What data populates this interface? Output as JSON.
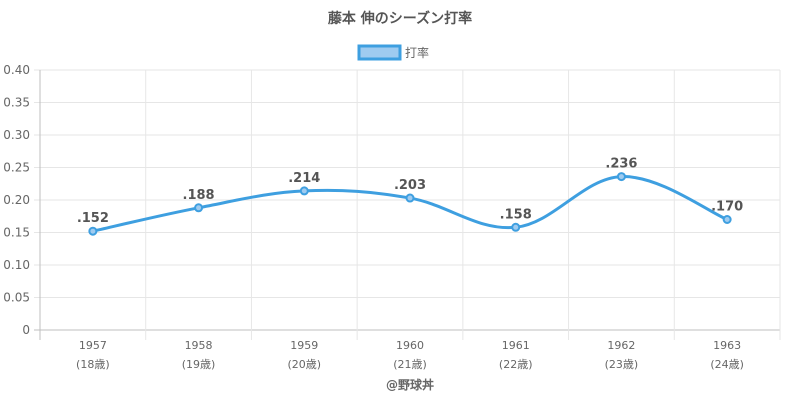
{
  "chart_data": {
    "type": "line",
    "title": "藤本 伸のシーズン打率",
    "x": [
      "1957",
      "1958",
      "1959",
      "1960",
      "1961",
      "1962",
      "1963"
    ],
    "x_sublabels": [
      "(18歳)",
      "(19歳)",
      "(20歳)",
      "(21歳)",
      "(22歳)",
      "(23歳)",
      "(24歳)"
    ],
    "series": [
      {
        "name": "打率",
        "values": [
          0.152,
          0.188,
          0.214,
          0.203,
          0.158,
          0.236,
          0.17
        ],
        "labels": [
          ".152",
          ".188",
          ".214",
          ".203",
          ".158",
          ".236",
          ".170"
        ]
      }
    ],
    "ylim": [
      0,
      0.4
    ],
    "yticks": [
      "0",
      "0.05",
      "0.10",
      "0.15",
      "0.20",
      "0.25",
      "0.30",
      "0.35",
      "0.40"
    ],
    "xlabel": "",
    "ylabel": "",
    "grid": true,
    "legend": "top-center",
    "footer": "@野球丼"
  },
  "colors": {
    "line": "#3e9fe0",
    "fill": "#9fcbf0",
    "grid": "#e6e6e6",
    "axis": "#bfbfbf",
    "text": "#666666",
    "title": "#555555",
    "datalabel": "#555555"
  }
}
